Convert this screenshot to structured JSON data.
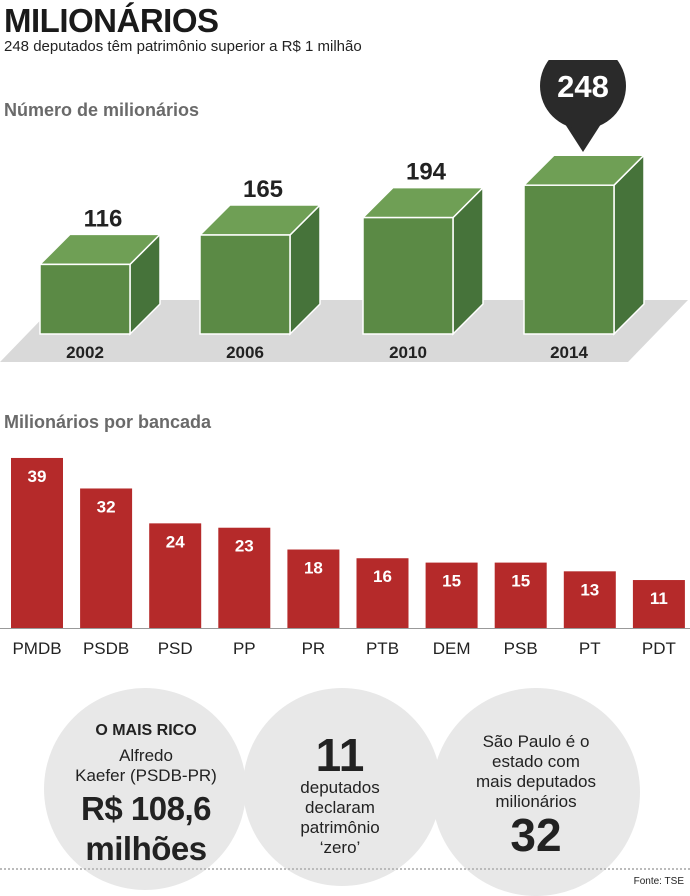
{
  "header": {
    "title": "MILIONÁRIOS",
    "subtitle": "248 deputados têm patrimônio superior a R$ 1 milhão"
  },
  "colors": {
    "green_front": "#5b8a45",
    "green_top": "#6f9f55",
    "green_side": "#46733a",
    "red": "#b52a2a",
    "platform": "#d9d9d9",
    "circle": "#e8e8e8",
    "callout": "#2a2a2a"
  },
  "chart_data": [
    {
      "type": "bar",
      "title": "Número de milionários",
      "categories": [
        "2002",
        "2006",
        "2010",
        "2014"
      ],
      "values": [
        116,
        165,
        194,
        248
      ],
      "highlight": "2014",
      "style": "3d-boxes"
    },
    {
      "type": "bar",
      "title": "Milionários por bancada",
      "categories": [
        "PMDB",
        "PSDB",
        "PSD",
        "PP",
        "PR",
        "PTB",
        "DEM",
        "PSB",
        "PT",
        "PDT"
      ],
      "values": [
        39,
        32,
        24,
        23,
        18,
        16,
        15,
        15,
        13,
        11
      ]
    }
  ],
  "facts": {
    "richest": {
      "heading": "O MAIS RICO",
      "line1": "Alfredo",
      "line2": "Kaefer (PSDB-PR)",
      "amount": "R$ 108,6",
      "unit": "milhões"
    },
    "zero": {
      "number": "11",
      "line1": "deputados",
      "line2": "declaram",
      "line3": "patrimônio",
      "line4": "‘zero’"
    },
    "sp": {
      "line1": "São Paulo é o",
      "line2": "estado com",
      "line3": "mais deputados",
      "line4": "milionários",
      "number": "32"
    }
  },
  "source": "Fonte: TSE"
}
